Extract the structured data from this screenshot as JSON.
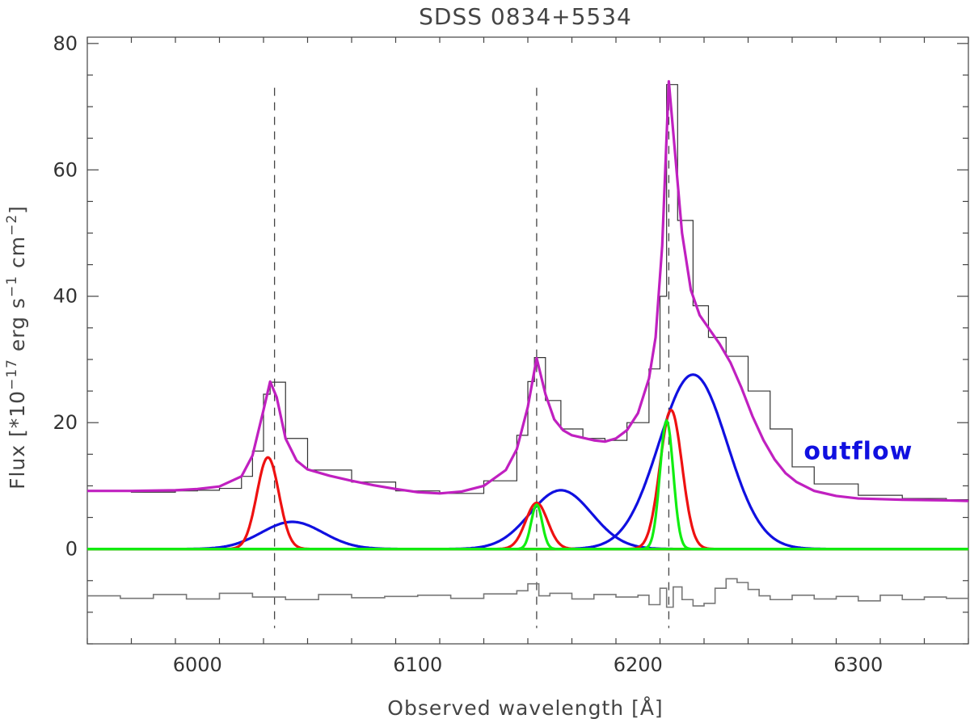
{
  "chart_data": {
    "type": "line",
    "title": "SDSS 0834+5534",
    "xlabel": "Observed wavelength [Å]",
    "ylabel_main": "Flux [*10",
    "ylabel_sup1": "−17",
    "ylabel_mid": " erg s",
    "ylabel_sup2": "−1",
    "ylabel_mid2": " cm",
    "ylabel_sup3": "−2",
    "ylabel_end": "]",
    "xlim": [
      5950,
      6350
    ],
    "ylim": [
      -15,
      81
    ],
    "x_ticks": [
      6000,
      6100,
      6200,
      6300
    ],
    "y_ticks": [
      0,
      20,
      40,
      60,
      80
    ],
    "x_minor_step": 20,
    "y_minor_step": 5,
    "vlines": [
      6035,
      6154,
      6214
    ],
    "vline_range": [
      -12.5,
      73
    ],
    "annotation": {
      "text": "outflow",
      "x": 6300,
      "y": 15.5,
      "color": "#1010e0"
    },
    "colors": {
      "data": "#333333",
      "total": "#c020c0",
      "narrow": "#ee1111",
      "broad": "#1010e0",
      "narrow_core": "#11ee11",
      "residual": "#777777",
      "vline": "#444444"
    },
    "series": [
      {
        "role": "observed-spectrum",
        "style": "steps",
        "x": [
          5950,
          5970,
          5990,
          6000,
          6010,
          6020,
          6025,
          6030,
          6033,
          6040,
          6050,
          6070,
          6090,
          6110,
          6130,
          6145,
          6150,
          6153,
          6158,
          6165,
          6175,
          6185,
          6195,
          6205,
          6210,
          6213,
          6218,
          6225,
          6232,
          6240,
          6250,
          6260,
          6270,
          6280,
          6300,
          6320,
          6340,
          6350
        ],
        "y": [
          9.2,
          9.0,
          9.2,
          9.3,
          9.6,
          11.5,
          15.5,
          24.5,
          26.4,
          17.5,
          12.5,
          10.6,
          9.2,
          8.8,
          10.8,
          18.0,
          26.5,
          30.3,
          23.5,
          19.0,
          17.5,
          17.2,
          20.0,
          28.5,
          40.0,
          73.5,
          52.0,
          38.5,
          33.5,
          30.5,
          25.0,
          19.0,
          13.0,
          10.3,
          8.5,
          8.0,
          7.8,
          7.5
        ]
      },
      {
        "role": "total-fit",
        "style": "line",
        "x": [
          5950,
          5970,
          5990,
          6000,
          6010,
          6020,
          6025,
          6030,
          6033,
          6036,
          6040,
          6045,
          6050,
          6060,
          6070,
          6080,
          6090,
          6100,
          6110,
          6120,
          6130,
          6140,
          6145,
          6150,
          6154,
          6158,
          6162,
          6166,
          6170,
          6175,
          6180,
          6185,
          6190,
          6195,
          6200,
          6205,
          6208,
          6211,
          6214,
          6217,
          6220,
          6224,
          6228,
          6232,
          6237,
          6242,
          6247,
          6252,
          6257,
          6262,
          6267,
          6272,
          6280,
          6290,
          6300,
          6320,
          6340,
          6350
        ],
        "y": [
          9.2,
          9.2,
          9.3,
          9.5,
          9.9,
          11.5,
          14.8,
          22.0,
          26.5,
          24.0,
          17.5,
          14.0,
          12.6,
          11.6,
          10.8,
          10.1,
          9.5,
          9.0,
          8.8,
          9.1,
          10.0,
          12.5,
          15.8,
          22.5,
          30.2,
          24.5,
          20.5,
          18.8,
          18.0,
          17.6,
          17.2,
          17.0,
          17.5,
          18.8,
          21.5,
          27.0,
          33.5,
          48.0,
          74.0,
          62.0,
          50.0,
          41.0,
          37.0,
          35.0,
          32.5,
          29.5,
          25.5,
          21.0,
          17.2,
          14.2,
          12.0,
          10.6,
          9.2,
          8.4,
          8.0,
          7.8,
          7.7,
          7.6
        ]
      },
      {
        "role": "narrow-component",
        "style": "gaussian",
        "centers": [
          6032,
          6154,
          6215
        ],
        "amplitudes": [
          14.5,
          7.3,
          22.0
        ],
        "sigmas": [
          5.0,
          5.0,
          5.0
        ]
      },
      {
        "role": "broad-component",
        "style": "gaussian",
        "centers": [
          6043,
          6165,
          6225
        ],
        "amplitudes": [
          4.3,
          9.3,
          27.6
        ],
        "sigmas": [
          14.0,
          14.0,
          15.5
        ]
      },
      {
        "role": "narrow-core-component",
        "style": "gaussian",
        "centers": [
          6154,
          6213
        ],
        "amplitudes": [
          7.0,
          20.3
        ],
        "sigmas": [
          2.5,
          3.0
        ]
      },
      {
        "role": "residual",
        "style": "steps",
        "x": [
          5950,
          5965,
          5980,
          5995,
          6010,
          6025,
          6040,
          6055,
          6070,
          6085,
          6100,
          6115,
          6130,
          6145,
          6150,
          6155,
          6160,
          6170,
          6180,
          6190,
          6200,
          6205,
          6210,
          6213,
          6216,
          6220,
          6225,
          6230,
          6235,
          6240,
          6245,
          6250,
          6255,
          6260,
          6270,
          6280,
          6290,
          6300,
          6310,
          6320,
          6330,
          6340,
          6350
        ],
        "y": [
          -7.4,
          -7.8,
          -7.2,
          -7.9,
          -7.0,
          -7.6,
          -8.0,
          -7.2,
          -7.7,
          -7.5,
          -7.3,
          -7.8,
          -7.1,
          -6.6,
          -5.5,
          -7.4,
          -7.0,
          -7.9,
          -7.2,
          -7.6,
          -7.3,
          -8.8,
          -6.2,
          -9.2,
          -6.0,
          -8.0,
          -9.0,
          -8.6,
          -6.2,
          -4.7,
          -5.3,
          -6.4,
          -7.4,
          -8.0,
          -7.3,
          -7.9,
          -7.5,
          -8.2,
          -7.3,
          -8.0,
          -7.6,
          -7.8,
          -7.0
        ]
      }
    ]
  }
}
